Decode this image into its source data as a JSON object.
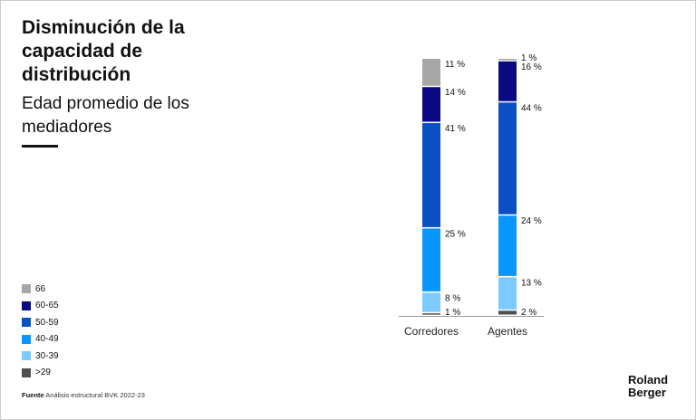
{
  "title": "Disminución de la capacidad de distribución",
  "subtitle": "Edad promedio de los mediadores",
  "source": {
    "label": "Fuente",
    "text": "Análisis estructural BVK 2022-23"
  },
  "logo": {
    "line1": "Roland",
    "line2": "Berger"
  },
  "chart_data": {
    "type": "bar",
    "stacked": true,
    "normalized": true,
    "categories": [
      "Corredores",
      "Agentes"
    ],
    "legend_position": "bottom-left",
    "series": [
      {
        "name": ">29",
        "color": "#505050",
        "values": [
          1,
          2
        ],
        "labels": [
          "1 %",
          "2 %"
        ]
      },
      {
        "name": "30-39",
        "color": "#7ccaff",
        "values": [
          8,
          13
        ],
        "labels": [
          "8 %",
          "13 %"
        ]
      },
      {
        "name": "40-49",
        "color": "#0a96ff",
        "values": [
          25,
          24
        ],
        "labels": [
          "25 %",
          "24 %"
        ]
      },
      {
        "name": "50-59",
        "color": "#0a4fc4",
        "values": [
          41,
          44
        ],
        "labels": [
          "41 %",
          "44 %"
        ]
      },
      {
        "name": "60-65",
        "color": "#0a0a82",
        "values": [
          14,
          16
        ],
        "labels": [
          "14 %",
          "16 %"
        ]
      },
      {
        "name": "66",
        "color": "#a6a6a6",
        "values": [
          11,
          1
        ],
        "labels": [
          "11 %",
          "1 %"
        ]
      }
    ]
  }
}
